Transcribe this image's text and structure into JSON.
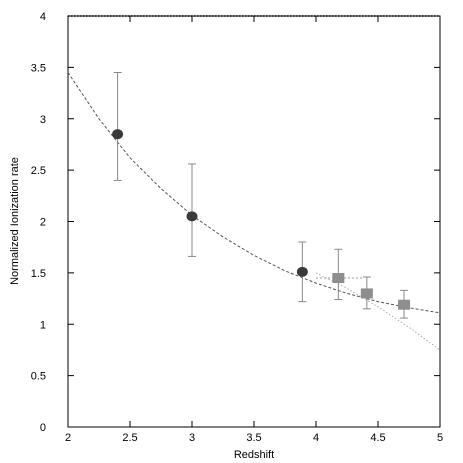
{
  "chart_data": {
    "type": "scatter",
    "xlabel": "Redshift",
    "ylabel": "Normalized Ionization rate",
    "xlim": [
      2,
      5
    ],
    "ylim": [
      0,
      4
    ],
    "xticks": [
      2,
      2.5,
      3,
      3.5,
      4,
      4.5,
      5
    ],
    "yticks": [
      0,
      0.5,
      1,
      1.5,
      2,
      2.5,
      3,
      3.5,
      4
    ],
    "xtick_labels": [
      "2",
      "2.5",
      "3",
      "3.5",
      "4",
      "4.5",
      "5"
    ],
    "ytick_labels": [
      "0",
      "0.5",
      "1",
      "1.5",
      "2",
      "2.5",
      "3",
      "3.5",
      "4"
    ],
    "grid": false,
    "series": [
      {
        "marker": "circle",
        "color": "#3a3a3a",
        "points": [
          {
            "x": 2.4,
            "y": 2.85,
            "yerr_low": 2.4,
            "yerr_high": 3.45
          },
          {
            "x": 3.0,
            "y": 2.05,
            "yerr_low": 1.66,
            "yerr_high": 2.56
          },
          {
            "x": 3.89,
            "y": 1.51,
            "yerr_low": 1.22,
            "yerr_high": 1.8
          }
        ]
      },
      {
        "marker": "square",
        "color": "#8e8e8e",
        "points": [
          {
            "x": 4.18,
            "y": 1.45,
            "yerr_low": 1.24,
            "yerr_high": 1.73,
            "xerr_low": 4.0,
            "xerr_high": 4.38
          },
          {
            "x": 4.41,
            "y": 1.3,
            "yerr_low": 1.15,
            "yerr_high": 1.46
          },
          {
            "x": 4.71,
            "y": 1.19,
            "yerr_low": 1.06,
            "yerr_high": 1.33
          }
        ]
      }
    ],
    "curves": [
      {
        "style": "dashed",
        "color": "#555555",
        "x": [
          2.0,
          2.25,
          2.5,
          2.75,
          3.0,
          3.25,
          3.5,
          3.75,
          4.0,
          4.25,
          4.5,
          4.75,
          5.0
        ],
        "y": [
          3.45,
          3.0,
          2.62,
          2.32,
          2.06,
          1.85,
          1.67,
          1.52,
          1.4,
          1.3,
          1.22,
          1.16,
          1.11
        ]
      },
      {
        "style": "dotted",
        "color": "#aaaaaa",
        "x": [
          4.0,
          4.25,
          4.5,
          4.75,
          5.0
        ],
        "y": [
          1.5,
          1.35,
          1.17,
          0.97,
          0.75
        ]
      }
    ]
  }
}
